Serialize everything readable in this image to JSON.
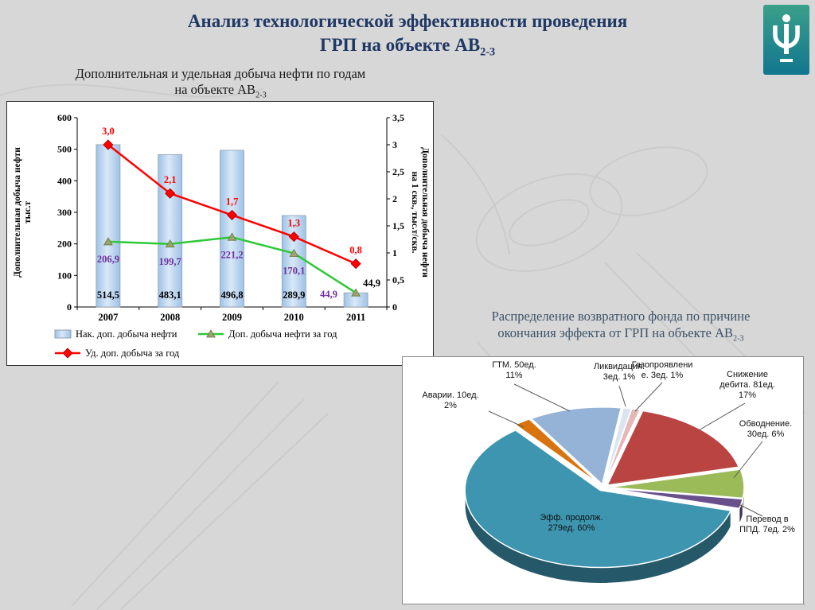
{
  "page": {
    "title_line1": "Анализ технологической эффективности проведения",
    "title_line2_main": "ГРП на объекте АВ",
    "title_line2_sub": "2-3"
  },
  "chart_data": [
    {
      "type": "bar",
      "subtype": "combo-bar-line",
      "title_lines": {
        "line1": "Дополнительная и удельная добыча нефти по годам",
        "line2_main": "на объекте АВ",
        "line2_sub": "2-3"
      },
      "categories": [
        "2007",
        "2008",
        "2009",
        "2010",
        "2011"
      ],
      "series": [
        {
          "name": "Нак. доп. добыча нефти",
          "type": "bar",
          "axis": "left",
          "values": [
            514.5,
            483.1,
            496.8,
            289.9,
            44.9
          ],
          "labels": [
            "514,5",
            "483,1",
            "496,8",
            "289,9",
            "44,9"
          ],
          "color": "#9dc2e6",
          "label_color": "#000000"
        },
        {
          "name": "Доп. добыча нефти за год",
          "type": "line",
          "axis": "left",
          "values": [
            206.9,
            199.7,
            221.2,
            170.1,
            44.9
          ],
          "labels": [
            "206,9",
            "199,7",
            "221,2",
            "170,1",
            "44,9"
          ],
          "color": "#2dc937",
          "label_color": "#7030a0"
        },
        {
          "name": "Уд. доп. добыча за год",
          "type": "line",
          "axis": "right",
          "values": [
            3.0,
            2.1,
            1.7,
            1.3,
            0.8
          ],
          "labels": [
            "3,0",
            "2,1",
            "1,7",
            "1,3",
            "0,8"
          ],
          "color": "#ff0000",
          "label_color": "#ff0000"
        }
      ],
      "left_axis": {
        "title_lines": [
          "Дополнительная добыча нефти",
          "тыс.т"
        ],
        "min": 0,
        "max": 600,
        "step": 100,
        "ticks": [
          "0",
          "100",
          "200",
          "300",
          "400",
          "500",
          "600"
        ]
      },
      "right_axis": {
        "title_lines": [
          "Дополнительная добыча нефти",
          "на 1 скв., тыс.т/скв."
        ],
        "min": 0,
        "max": 3.5,
        "step": 0.5,
        "ticks": [
          "0",
          "0,5",
          "1",
          "1,5",
          "2",
          "2,5",
          "3",
          "3,5"
        ]
      },
      "grid": false,
      "legend_position": "bottom"
    },
    {
      "type": "pie",
      "title_lines": {
        "line1": "Распределение возвратного фонда по причине",
        "line2_main": "окончания эффекта от ГРП на объекте АВ",
        "line2_sub": "2-3"
      },
      "slices": [
        {
          "label": "Ликвидация. 3ед. 1%",
          "label_lines": [
            "Ликвидация.",
            "3ед. 1%"
          ],
          "count": 3,
          "percent": 1,
          "color": "#dbe5f1"
        },
        {
          "label": "Газопроявление. 3ед. 1%",
          "label_lines": [
            "Газопроявлени",
            "е. 3ед. 1%"
          ],
          "count": 3,
          "percent": 1,
          "color": "#e5b8b7"
        },
        {
          "label": "Снижение дебита. 81ед. 17%",
          "label_lines": [
            "Снижение",
            "дебита. 81ед.",
            "17%"
          ],
          "count": 81,
          "percent": 17,
          "color": "#b94441"
        },
        {
          "label": "Обводнение. 30ед. 6%",
          "label_lines": [
            "Обводнение.",
            "30ед. 6%"
          ],
          "count": 30,
          "percent": 6,
          "color": "#9bbb59"
        },
        {
          "label": "Перевод в ППД. 7ед. 2%",
          "label_lines": [
            "Перевод в",
            "ППД. 7ед. 2%"
          ],
          "count": 7,
          "percent": 2,
          "color": "#69508d"
        },
        {
          "label": "Эфф. продолж. 279ед. 60%",
          "label_lines": [
            "Эфф. продолж.",
            "279ед. 60%"
          ],
          "count": 279,
          "percent": 60,
          "color": "#3d95b0"
        },
        {
          "label": "Аварии. 10ед. 2%",
          "label_lines": [
            "Аварии. 10ед.",
            "2%"
          ],
          "count": 10,
          "percent": 2,
          "color": "#d9730f"
        },
        {
          "label": "ГТМ. 50ед. 11%",
          "label_lines": [
            "ГТМ. 50ед.",
            "11%"
          ],
          "count": 50,
          "percent": 11,
          "color": "#95b3d7"
        }
      ]
    }
  ]
}
